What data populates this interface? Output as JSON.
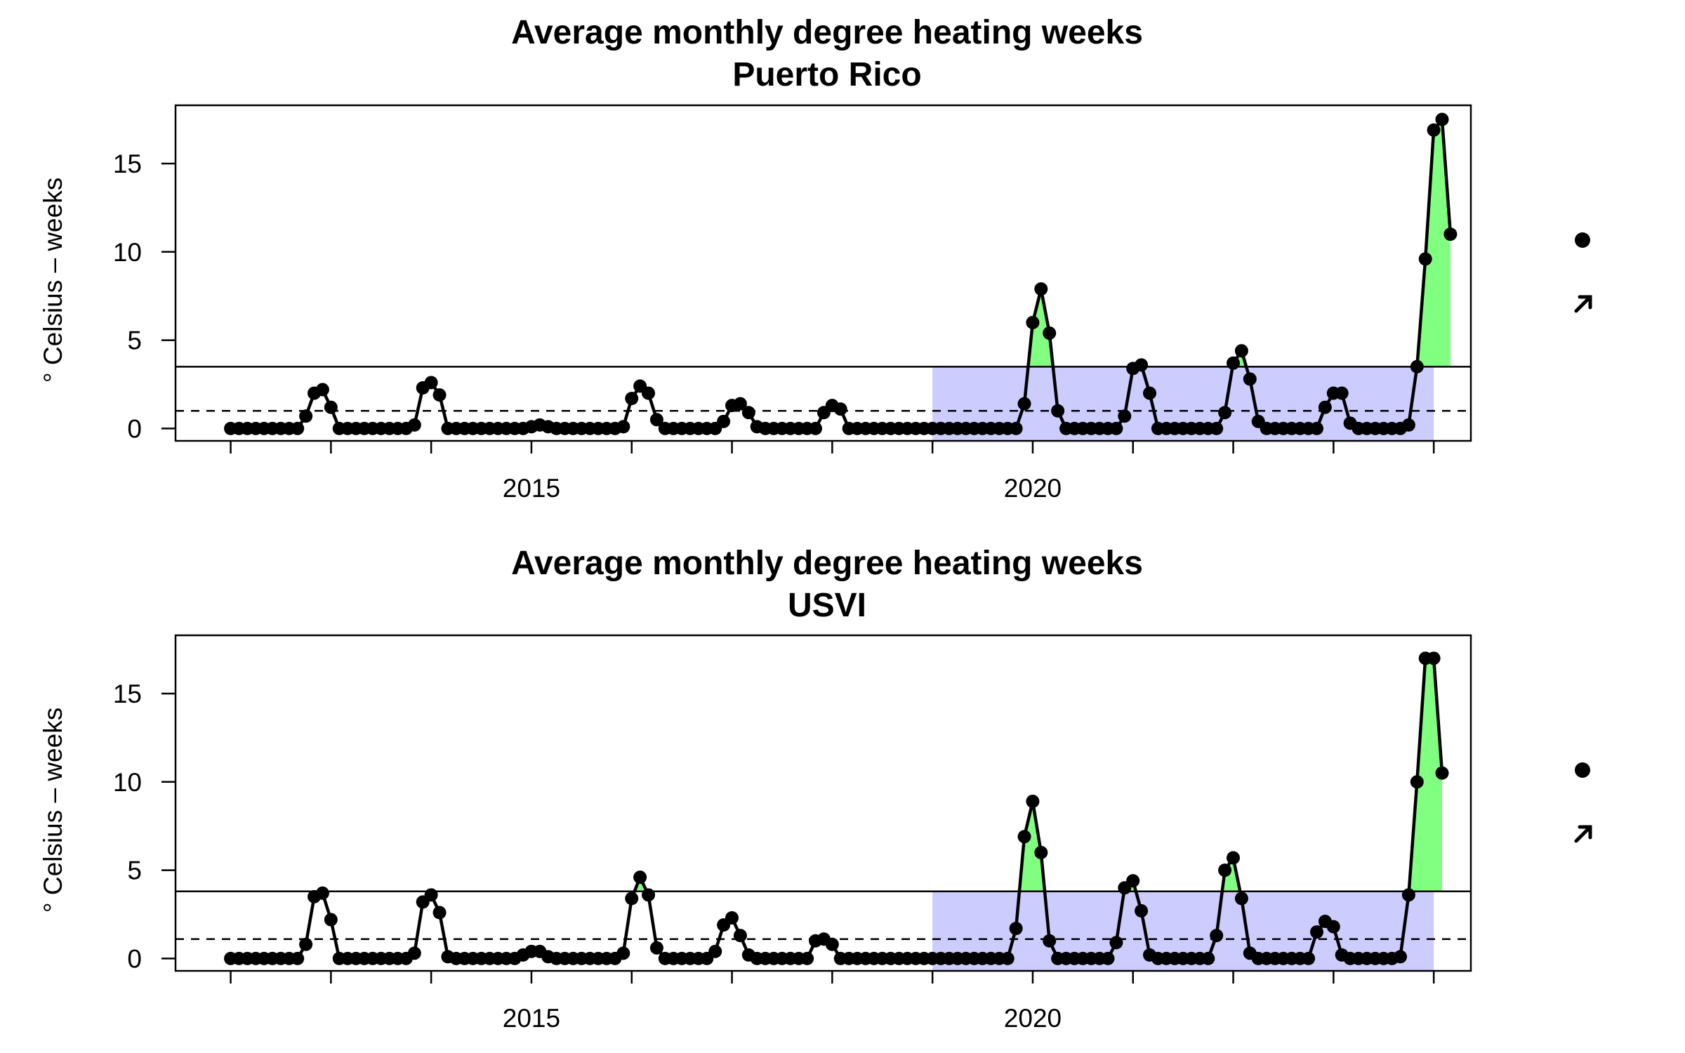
{
  "chart_data": [
    {
      "type": "line",
      "title": "Average monthly degree heating weeks",
      "subtitle": "Puerto Rico",
      "ylabel": "° Celsius – weeks",
      "xlabel": "",
      "xlim": [
        2011.45,
        2024.37
      ],
      "ylim": [
        -0.7,
        18.3
      ],
      "x_ticks": [
        2012,
        2013,
        2014,
        2015,
        2016,
        2017,
        2018,
        2019,
        2020,
        2021,
        2022,
        2023,
        2024
      ],
      "x_tick_labels": [
        {
          "value": 2015,
          "label": "2015"
        },
        {
          "value": 2020,
          "label": "2020"
        }
      ],
      "y_ticks": [
        0,
        5,
        10,
        15
      ],
      "x_start": 2012.0,
      "x_step": 0.08333,
      "values": [
        0,
        0,
        0,
        0,
        0,
        0,
        0,
        0,
        0,
        0.7,
        2.0,
        2.2,
        1.2,
        0,
        0,
        0,
        0,
        0,
        0,
        0,
        0,
        0,
        0.2,
        2.3,
        2.6,
        1.9,
        0,
        0,
        0,
        0,
        0,
        0,
        0,
        0,
        0,
        0,
        0.1,
        0.2,
        0.1,
        0,
        0,
        0,
        0,
        0,
        0,
        0,
        0,
        0.1,
        1.7,
        2.4,
        2.0,
        0.5,
        0,
        0,
        0,
        0,
        0,
        0,
        0,
        0.4,
        1.3,
        1.4,
        0.9,
        0.1,
        0,
        0,
        0,
        0,
        0,
        0,
        0,
        0.9,
        1.3,
        1.1,
        0,
        0,
        0,
        0,
        0,
        0,
        0,
        0,
        0,
        0,
        0,
        0,
        0,
        0,
        0,
        0,
        0,
        0,
        0,
        0,
        0,
        1.4,
        6.0,
        7.9,
        5.4,
        1.0,
        0,
        0,
        0,
        0,
        0,
        0,
        0,
        0.7,
        3.4,
        3.6,
        2.0,
        0,
        0,
        0,
        0,
        0,
        0,
        0,
        0,
        0.9,
        3.7,
        4.4,
        2.8,
        0.4,
        0,
        0,
        0,
        0,
        0,
        0,
        0,
        1.2,
        2.0,
        2.0,
        0.3,
        0,
        0,
        0,
        0,
        0,
        0,
        0.2,
        3.5,
        9.6,
        16.9,
        17.5,
        11.0
      ],
      "mean_line": 1.0,
      "sd_line": 3.5,
      "shaded_range": [
        2019.0,
        2024.0
      ],
      "colors": {
        "line": "#000000",
        "above_sd": "#80ff80",
        "recent_window": "#ccccff"
      },
      "side_symbols": [
        "dot",
        "arrow-up-right"
      ]
    },
    {
      "type": "line",
      "title": "Average monthly degree heating weeks",
      "subtitle": "USVI",
      "ylabel": "° Celsius – weeks",
      "xlabel": "",
      "xlim": [
        2011.45,
        2024.37
      ],
      "ylim": [
        -0.7,
        18.3
      ],
      "x_ticks": [
        2012,
        2013,
        2014,
        2015,
        2016,
        2017,
        2018,
        2019,
        2020,
        2021,
        2022,
        2023,
        2024
      ],
      "x_tick_labels": [
        {
          "value": 2015,
          "label": "2015"
        },
        {
          "value": 2020,
          "label": "2020"
        }
      ],
      "y_ticks": [
        0,
        5,
        10,
        15
      ],
      "x_start": 2012.0,
      "x_step": 0.08333,
      "values": [
        0,
        0,
        0,
        0,
        0,
        0,
        0,
        0,
        0,
        0.8,
        3.5,
        3.7,
        2.2,
        0,
        0,
        0,
        0,
        0,
        0,
        0,
        0,
        0,
        0.3,
        3.2,
        3.6,
        2.6,
        0.1,
        0,
        0,
        0,
        0,
        0,
        0,
        0,
        0,
        0.2,
        0.4,
        0.4,
        0.1,
        0,
        0,
        0,
        0,
        0,
        0,
        0,
        0,
        0.3,
        3.4,
        4.6,
        3.6,
        0.6,
        0,
        0,
        0,
        0,
        0,
        0,
        0.4,
        1.9,
        2.3,
        1.3,
        0.2,
        0,
        0,
        0,
        0,
        0,
        0,
        0,
        1.0,
        1.1,
        0.8,
        0,
        0,
        0,
        0,
        0,
        0,
        0,
        0,
        0,
        0,
        0,
        0,
        0,
        0,
        0,
        0,
        0,
        0,
        0,
        0,
        0,
        1.7,
        6.9,
        8.9,
        6.0,
        1.0,
        0,
        0,
        0,
        0,
        0,
        0,
        0,
        0.9,
        4.0,
        4.4,
        2.7,
        0.2,
        0,
        0,
        0,
        0,
        0,
        0,
        0,
        1.3,
        5.0,
        5.7,
        3.4,
        0.3,
        0,
        0,
        0,
        0,
        0,
        0,
        0,
        1.5,
        2.1,
        1.8,
        0.2,
        0,
        0,
        0,
        0,
        0,
        0,
        0.1,
        3.6,
        10.0,
        17.0,
        17.0,
        10.5
      ],
      "mean_line": 1.1,
      "sd_line": 3.8,
      "shaded_range": [
        2019.0,
        2024.0
      ],
      "colors": {
        "line": "#000000",
        "above_sd": "#80ff80",
        "recent_window": "#ccccff"
      },
      "side_symbols": [
        "dot",
        "arrow-up-right"
      ]
    }
  ]
}
